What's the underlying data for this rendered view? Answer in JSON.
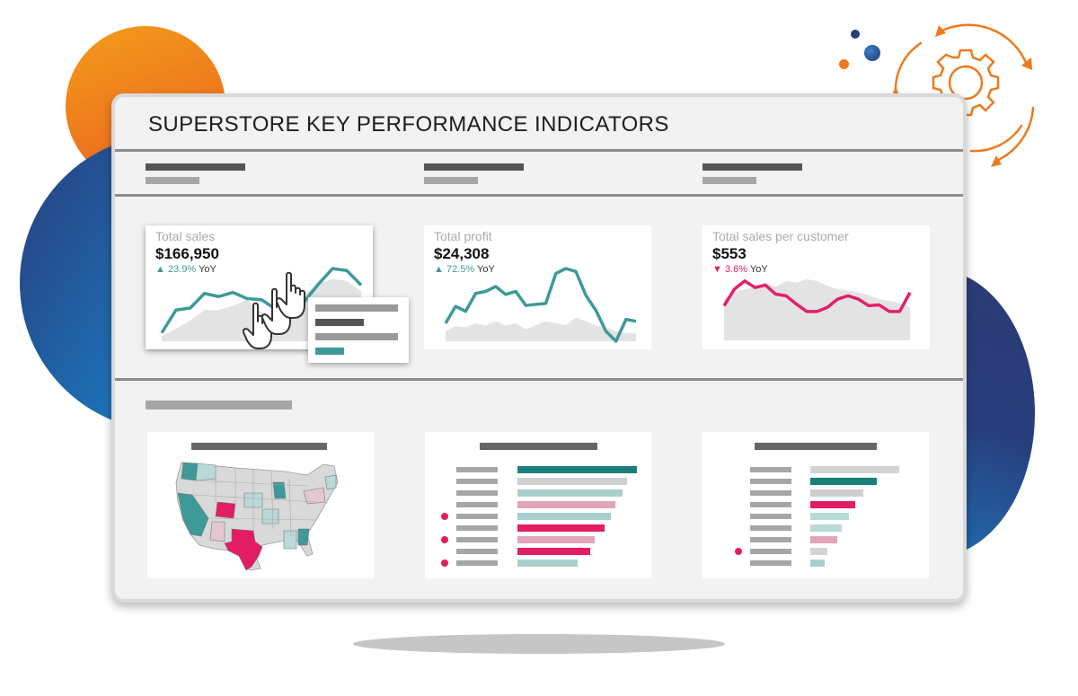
{
  "dashboard": {
    "title": "SUPERSTORE KEY PERFORMANCE INDICATORS"
  },
  "kpis": [
    {
      "label": "Total sales",
      "value": "$166,950",
      "delta": "23.9%",
      "delta_suffix": "YoY",
      "direction": "up",
      "color": "#3d9a98",
      "trend": [
        8,
        30,
        32,
        46,
        43,
        47,
        41,
        40,
        31,
        30,
        38,
        55,
        70,
        68,
        54
      ],
      "area": [
        5,
        12,
        20,
        30,
        30,
        34,
        40,
        28,
        20,
        24,
        45,
        56,
        60,
        58,
        48
      ]
    },
    {
      "label": "Total profit",
      "value": "$24,308",
      "delta": "72.5%",
      "delta_suffix": "YoY",
      "direction": "up",
      "color": "#3d9a98",
      "trend": [
        18,
        35,
        30,
        48,
        50,
        55,
        47,
        50,
        36,
        37,
        38,
        68,
        73,
        70,
        46,
        31,
        10,
        0,
        22,
        20
      ],
      "area": [
        10,
        15,
        14,
        18,
        16,
        20,
        16,
        18,
        12,
        16,
        20,
        18,
        16,
        24,
        20,
        16,
        14,
        10,
        8,
        8
      ]
    },
    {
      "label": "Total sales per customer",
      "value": "$553",
      "delta": "3.6%",
      "delta_suffix": "YoY",
      "direction": "down",
      "color": "#e0206a",
      "trend": [
        42,
        62,
        72,
        64,
        67,
        56,
        54,
        44,
        35,
        35,
        40,
        50,
        54,
        50,
        42,
        43,
        35,
        35,
        58
      ],
      "area": [
        50,
        58,
        62,
        64,
        70,
        65,
        72,
        70,
        74,
        72,
        66,
        62,
        60,
        58,
        55,
        50,
        48,
        45,
        40
      ]
    }
  ],
  "tooltip": {
    "bars": [
      {
        "width": 92,
        "color": "#999999"
      },
      {
        "width": 54,
        "color": "#555555"
      },
      {
        "width": 92,
        "color": "#999999"
      },
      {
        "width": 32,
        "color": "#3d9a98"
      }
    ]
  },
  "bar_panels": [
    {
      "bars": [
        {
          "value": 100,
          "color": "#1a7f7a",
          "dot": false
        },
        {
          "value": 92,
          "color": "#cfcfcf",
          "dot": false
        },
        {
          "value": 88,
          "color": "#a9cfcd",
          "dot": false
        },
        {
          "value": 82,
          "color": "#e1a5b8",
          "dot": false
        },
        {
          "value": 78,
          "color": "#a9cfcd",
          "dot": true
        },
        {
          "value": 73,
          "color": "#e31c63",
          "dot": false
        },
        {
          "value": 65,
          "color": "#e1a5b8",
          "dot": true
        },
        {
          "value": 61,
          "color": "#e31c63",
          "dot": false
        },
        {
          "value": 50,
          "color": "#a9cfcd",
          "dot": true
        }
      ],
      "max": 100
    },
    {
      "bars": [
        {
          "value": 100,
          "color": "#d3d3d3",
          "dot": false
        },
        {
          "value": 75,
          "color": "#1a7f7a",
          "dot": false
        },
        {
          "value": 60,
          "color": "#cfcfcf",
          "dot": false
        },
        {
          "value": 51,
          "color": "#e31c63",
          "dot": false
        },
        {
          "value": 43,
          "color": "#b8dad8",
          "dot": false
        },
        {
          "value": 35,
          "color": "#b8dad8",
          "dot": false
        },
        {
          "value": 30,
          "color": "#e1a5b8",
          "dot": false
        },
        {
          "value": 19,
          "color": "#d3d3d3",
          "dot": true
        },
        {
          "value": 16,
          "color": "#a9cfcd",
          "dot": false
        }
      ],
      "max": 100
    }
  ],
  "map": {
    "highlight_color": "#e31c63",
    "teal_color": "#3d9a98",
    "light_teal": "#b8dad8",
    "light_pink": "#e6c6d0",
    "neutral": "#d9d9d9"
  },
  "colors": {
    "teal": "#3d9a98",
    "pink": "#e31c63",
    "orange": "#ee7a1c",
    "navy": "#283d7c"
  }
}
